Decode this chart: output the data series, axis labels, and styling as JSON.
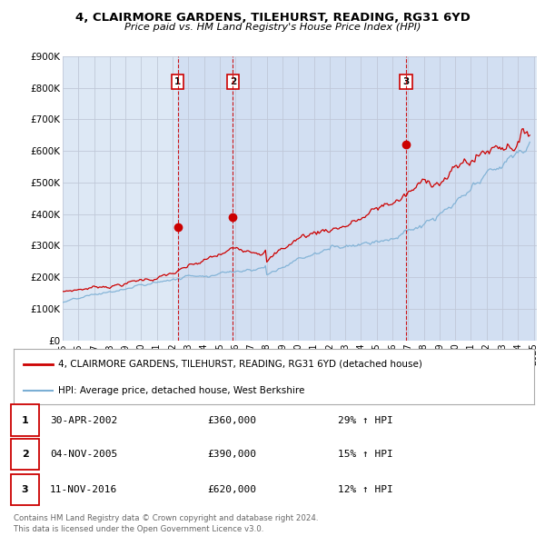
{
  "title": "4, CLAIRMORE GARDENS, TILEHURST, READING, RG31 6YD",
  "subtitle": "Price paid vs. HM Land Registry's House Price Index (HPI)",
  "legend_line1": "4, CLAIRMORE GARDENS, TILEHURST, READING, RG31 6YD (detached house)",
  "legend_line2": "HPI: Average price, detached house, West Berkshire",
  "sale_color": "#cc0000",
  "hpi_color": "#7bafd4",
  "vline_color": "#cc0000",
  "background_color": "#ffffff",
  "plot_bg_color": "#dde8f5",
  "grid_color": "#c0c8d8",
  "transactions": [
    {
      "label": "1",
      "date_num": 2002.33,
      "price": 360000,
      "date_str": "30-APR-2002",
      "price_str": "£360,000",
      "hpi_str": "29% ↑ HPI"
    },
    {
      "label": "2",
      "date_num": 2005.84,
      "price": 390000,
      "date_str": "04-NOV-2005",
      "price_str": "£390,000",
      "hpi_str": "15% ↑ HPI"
    },
    {
      "label": "3",
      "date_num": 2016.87,
      "price": 620000,
      "date_str": "11-NOV-2016",
      "price_str": "£620,000",
      "hpi_str": "12% ↑ HPI"
    }
  ],
  "footer": "Contains HM Land Registry data © Crown copyright and database right 2024.\nThis data is licensed under the Open Government Licence v3.0.",
  "ylim": [
    0,
    900000
  ],
  "yticks": [
    0,
    100000,
    200000,
    300000,
    400000,
    500000,
    600000,
    700000,
    800000,
    900000
  ],
  "ytick_labels": [
    "£0",
    "£100K",
    "£200K",
    "£300K",
    "£400K",
    "£500K",
    "£600K",
    "£700K",
    "£800K",
    "£900K"
  ]
}
